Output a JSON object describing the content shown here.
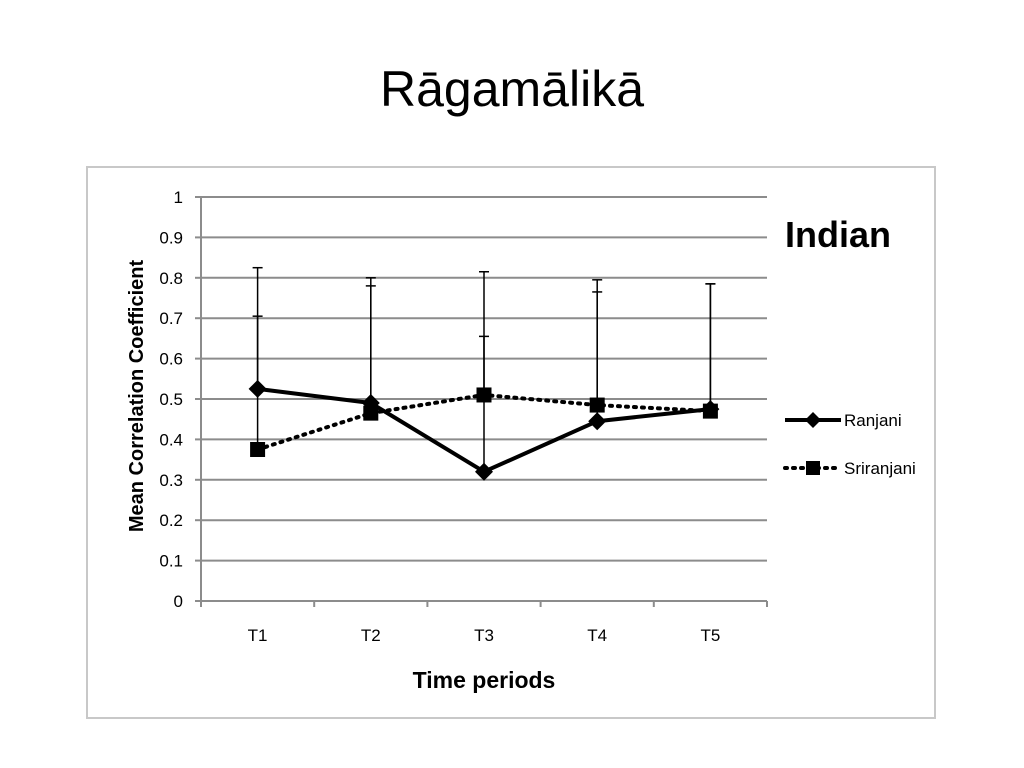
{
  "slide": {
    "title": "Rāgamālikā"
  },
  "chart_data": {
    "type": "line",
    "title": "Indian",
    "xlabel": "Time periods",
    "ylabel": "Mean Correlation Coefficient",
    "categories": [
      "T1",
      "T2",
      "T3",
      "T4",
      "T5"
    ],
    "ylim": [
      0,
      1
    ],
    "yticks": [
      "0",
      "0.1",
      "0.2",
      "0.3",
      "0.4",
      "0.5",
      "0.6",
      "0.7",
      "0.8",
      "0.9",
      "1"
    ],
    "grid": true,
    "legend_position": "right",
    "series": [
      {
        "name": "Ranjani",
        "values": [
          0.525,
          0.49,
          0.32,
          0.445,
          0.475
        ],
        "error_upper": [
          0.825,
          0.8,
          0.815,
          0.795,
          0.785
        ],
        "line_style": "solid",
        "marker": "diamond",
        "color": "#000000"
      },
      {
        "name": "Sriranjani",
        "values": [
          0.375,
          0.465,
          0.51,
          0.485,
          0.47
        ],
        "error_upper": [
          0.705,
          0.78,
          0.655,
          0.765,
          0.785
        ],
        "line_style": "dotted",
        "marker": "square",
        "color": "#000000"
      }
    ],
    "colors": {
      "gridline": "#8c8c8c",
      "axis": "#8c8c8c",
      "text": "#000000"
    }
  }
}
